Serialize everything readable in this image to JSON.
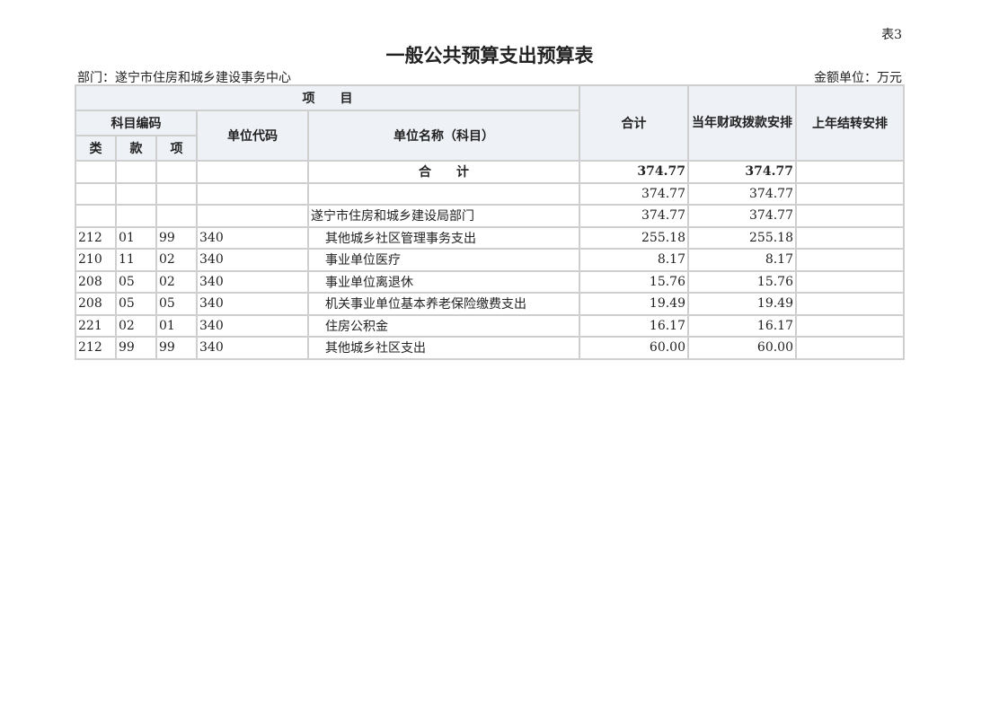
{
  "table_tag": "表3",
  "title": "一般公共预算支出预算表",
  "department": "部门：遂宁市住房和城乡建设事务中心",
  "unit": "金额单位：万元",
  "headers": {
    "project": "项　　目",
    "subject_code": "科目编码",
    "lei": "类",
    "kuan": "款",
    "xiang": "项",
    "unit_code": "单位代码",
    "unit_name": "单位名称（科目）",
    "total": "合计",
    "current_year": "当年财政拨款安排",
    "carryover": "上年结转安排"
  },
  "total_row": {
    "label": "合　　计",
    "total": "374.77",
    "current_year": "374.77",
    "carryover": ""
  },
  "rows": [
    {
      "lei": "",
      "kuan": "",
      "xiang": "",
      "unit_code": "",
      "name": "",
      "total": "374.77",
      "current_year": "374.77",
      "carryover": ""
    },
    {
      "lei": "",
      "kuan": "",
      "xiang": "",
      "unit_code": "",
      "name": "遂宁市住房和城乡建设局部门",
      "total": "374.77",
      "current_year": "374.77",
      "carryover": ""
    },
    {
      "lei": "212",
      "kuan": "01",
      "xiang": "99",
      "unit_code": "340",
      "name": "其他城乡社区管理事务支出",
      "total": "255.18",
      "current_year": "255.18",
      "carryover": ""
    },
    {
      "lei": "210",
      "kuan": "11",
      "xiang": "02",
      "unit_code": "340",
      "name": "事业单位医疗",
      "total": "8.17",
      "current_year": "8.17",
      "carryover": ""
    },
    {
      "lei": "208",
      "kuan": "05",
      "xiang": "02",
      "unit_code": "340",
      "name": "事业单位离退休",
      "total": "15.76",
      "current_year": "15.76",
      "carryover": ""
    },
    {
      "lei": "208",
      "kuan": "05",
      "xiang": "05",
      "unit_code": "340",
      "name": "机关事业单位基本养老保险缴费支出",
      "total": "19.49",
      "current_year": "19.49",
      "carryover": ""
    },
    {
      "lei": "221",
      "kuan": "02",
      "xiang": "01",
      "unit_code": "340",
      "name": "住房公积金",
      "total": "16.17",
      "current_year": "16.17",
      "carryover": ""
    },
    {
      "lei": "212",
      "kuan": "99",
      "xiang": "99",
      "unit_code": "340",
      "name": "其他城乡社区支出",
      "total": "60.00",
      "current_year": "60.00",
      "carryover": ""
    }
  ]
}
